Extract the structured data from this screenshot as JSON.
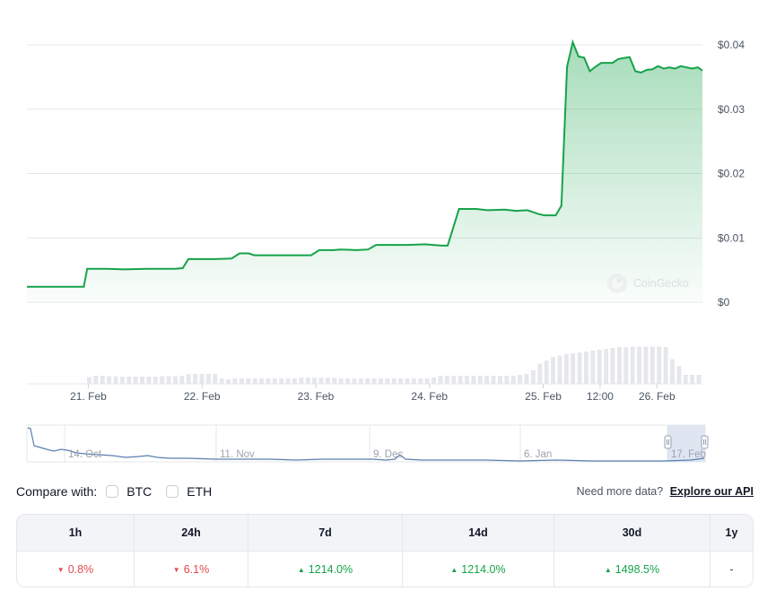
{
  "chart_data": {
    "type": "area",
    "y_ticks": [
      "$0.04",
      "$0.03",
      "$0.02",
      "$0.01",
      "$0"
    ],
    "y_tick_values": [
      0.04,
      0.03,
      0.02,
      0.01,
      0
    ],
    "ylim": [
      0,
      0.04
    ],
    "x_ticks": [
      {
        "label": "21. Feb",
        "t": 0.09
      },
      {
        "label": "22. Feb",
        "t": 1.09
      },
      {
        "label": "23. Feb",
        "t": 2.09
      },
      {
        "label": "24. Feb",
        "t": 3.09
      },
      {
        "label": "25. Feb",
        "t": 4.09
      },
      {
        "label": "12:00",
        "t": 4.59
      },
      {
        "label": "26. Feb",
        "t": 5.09
      }
    ],
    "xlim": [
      -0.45,
      5.49
    ],
    "series": [
      {
        "points": [
          [
            -0.45,
            0.0024
          ],
          [
            -0.3,
            0.0024
          ],
          [
            -0.1,
            0.0024
          ],
          [
            0.05,
            0.0024
          ],
          [
            0.08,
            0.0052
          ],
          [
            0.25,
            0.0052
          ],
          [
            0.4,
            0.0051
          ],
          [
            0.6,
            0.0052
          ],
          [
            0.75,
            0.0052
          ],
          [
            0.85,
            0.0052
          ],
          [
            0.92,
            0.0053
          ],
          [
            0.97,
            0.0067
          ],
          [
            1.1,
            0.0067
          ],
          [
            1.2,
            0.0067
          ],
          [
            1.35,
            0.0068
          ],
          [
            1.42,
            0.0076
          ],
          [
            1.5,
            0.0076
          ],
          [
            1.55,
            0.0073
          ],
          [
            1.7,
            0.0073
          ],
          [
            1.9,
            0.0073
          ],
          [
            2.05,
            0.0073
          ],
          [
            2.12,
            0.0081
          ],
          [
            2.25,
            0.0081
          ],
          [
            2.3,
            0.0082
          ],
          [
            2.45,
            0.0081
          ],
          [
            2.55,
            0.0082
          ],
          [
            2.62,
            0.0089
          ],
          [
            2.75,
            0.0089
          ],
          [
            2.9,
            0.0089
          ],
          [
            3.05,
            0.009
          ],
          [
            3.2,
            0.0088
          ],
          [
            3.25,
            0.0088
          ],
          [
            3.35,
            0.0145
          ],
          [
            3.5,
            0.0145
          ],
          [
            3.6,
            0.0143
          ],
          [
            3.75,
            0.0144
          ],
          [
            3.85,
            0.0142
          ],
          [
            3.95,
            0.0143
          ],
          [
            4.05,
            0.0137
          ],
          [
            4.1,
            0.0135
          ],
          [
            4.2,
            0.0135
          ],
          [
            4.25,
            0.015
          ],
          [
            4.3,
            0.0366
          ],
          [
            4.35,
            0.0404
          ],
          [
            4.4,
            0.0382
          ],
          [
            4.45,
            0.038
          ],
          [
            4.5,
            0.0359
          ],
          [
            4.55,
            0.0366
          ],
          [
            4.6,
            0.0372
          ],
          [
            4.7,
            0.0372
          ],
          [
            4.75,
            0.0378
          ],
          [
            4.85,
            0.0381
          ],
          [
            4.9,
            0.0359
          ],
          [
            4.95,
            0.0357
          ],
          [
            5.0,
            0.0361
          ],
          [
            5.05,
            0.0362
          ],
          [
            5.1,
            0.0367
          ],
          [
            5.15,
            0.0363
          ],
          [
            5.2,
            0.0365
          ],
          [
            5.25,
            0.0363
          ],
          [
            5.3,
            0.0367
          ],
          [
            5.35,
            0.0365
          ],
          [
            5.4,
            0.0363
          ],
          [
            5.45,
            0.0365
          ],
          [
            5.49,
            0.036
          ]
        ]
      }
    ],
    "volume": [
      0.15,
      0.18,
      0.18,
      0.17,
      0.17,
      0.16,
      0.16,
      0.16,
      0.16,
      0.16,
      0.16,
      0.17,
      0.17,
      0.17,
      0.18,
      0.22,
      0.22,
      0.22,
      0.22,
      0.22,
      0.12,
      0.1,
      0.12,
      0.12,
      0.12,
      0.12,
      0.12,
      0.12,
      0.12,
      0.12,
      0.12,
      0.12,
      0.14,
      0.14,
      0.14,
      0.14,
      0.14,
      0.14,
      0.12,
      0.12,
      0.12,
      0.12,
      0.12,
      0.12,
      0.12,
      0.12,
      0.12,
      0.12,
      0.12,
      0.12,
      0.12,
      0.12,
      0.14,
      0.18,
      0.18,
      0.18,
      0.18,
      0.18,
      0.18,
      0.18,
      0.18,
      0.18,
      0.18,
      0.18,
      0.18,
      0.2,
      0.22,
      0.3,
      0.45,
      0.52,
      0.6,
      0.63,
      0.66,
      0.68,
      0.7,
      0.72,
      0.74,
      0.76,
      0.78,
      0.8,
      0.82,
      0.82,
      0.83,
      0.83,
      0.83,
      0.83,
      0.83,
      0.82,
      0.55,
      0.4,
      0.2,
      0.2,
      0.2
    ],
    "watermark": "CoinGecko",
    "navigator": {
      "labels": [
        "14. Oct",
        "11. Nov",
        "9. Dec",
        "6. Jan",
        "17. Feb"
      ]
    }
  },
  "compare": {
    "label": "Compare with:",
    "options": [
      {
        "label": "BTC"
      },
      {
        "label": "ETH"
      }
    ],
    "need_more": "Need more data?",
    "api_link": "Explore our API"
  },
  "performance": {
    "headers": [
      "1h",
      "24h",
      "7d",
      "14d",
      "30d",
      "1y"
    ],
    "values": [
      {
        "text": "0.8%",
        "dir": "down"
      },
      {
        "text": "6.1%",
        "dir": "down"
      },
      {
        "text": "1214.0%",
        "dir": "up"
      },
      {
        "text": "1214.0%",
        "dir": "up"
      },
      {
        "text": "1498.5%",
        "dir": "up"
      },
      {
        "text": "-",
        "dir": "none"
      }
    ]
  },
  "colors": {
    "line": "#16a34a",
    "area_top": "#16a34a",
    "grid": "#e5e7eb",
    "volume": "#e5e7eb",
    "navigator_line": "#5b7fb0",
    "navigator_selection": "#dbe3f1",
    "up": "#16a34a",
    "down": "#e5484d"
  }
}
